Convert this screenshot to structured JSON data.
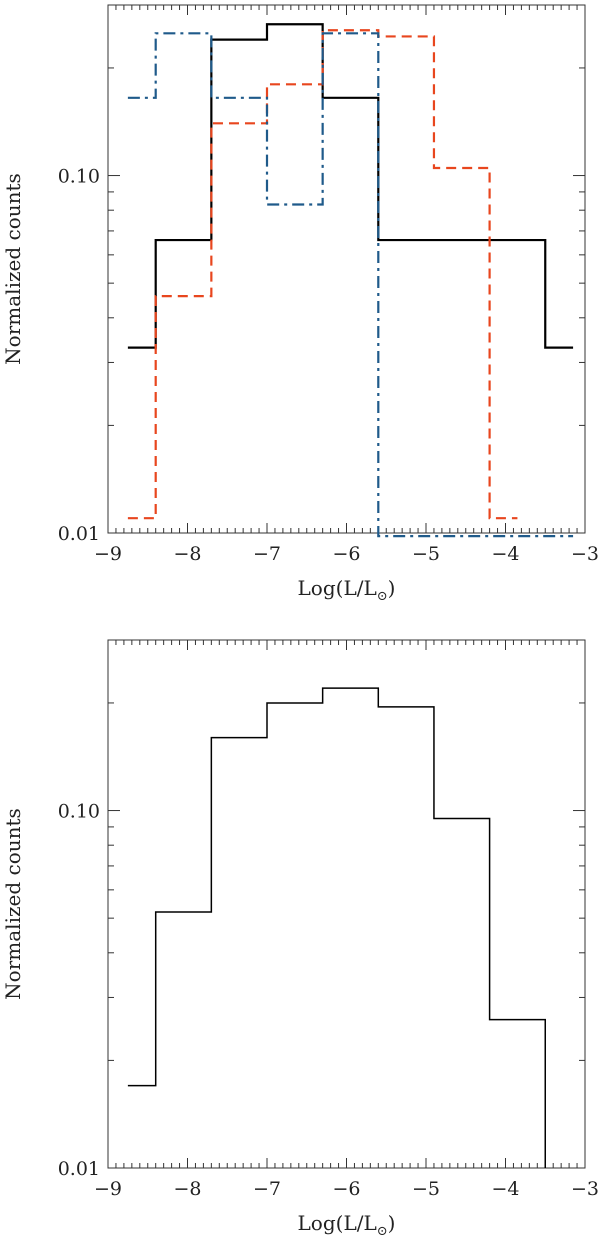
{
  "chart_data": [
    {
      "type": "line",
      "subtype": "step-histogram",
      "ylog": true,
      "xlim": [
        -9,
        -3
      ],
      "ylim": [
        0.01,
        0.3
      ],
      "xlabel": "Log(L/L",
      "xlabel_sub": "⊙",
      "xlabel_close": ")",
      "ylabel": "Normalized counts",
      "yticks": [
        {
          "value": 0.01,
          "label": "0.01"
        },
        {
          "value": 0.1,
          "label": "0.10"
        }
      ],
      "xticks": [
        {
          "value": -9,
          "label": "−9"
        },
        {
          "value": -8,
          "label": "−8"
        },
        {
          "value": -7,
          "label": "−7"
        },
        {
          "value": -6,
          "label": "−6"
        },
        {
          "value": -5,
          "label": "−5"
        },
        {
          "value": -4,
          "label": "−4"
        },
        {
          "value": -3,
          "label": "−3"
        }
      ],
      "series": [
        {
          "style": "solid",
          "color": "#000000",
          "edges": [
            -8.75,
            -8.4,
            -7.7,
            -7.0,
            -6.3,
            -5.6,
            -4.9,
            -4.2,
            -3.5,
            -3.15
          ],
          "values": [
            0.033,
            0.066,
            0.24,
            0.265,
            0.165,
            0.066,
            0.066,
            0.066,
            0.033
          ]
        },
        {
          "style": "dashed",
          "color": "#e8461e",
          "edges": [
            -8.75,
            -8.4,
            -7.7,
            -7.0,
            -6.3,
            -5.6,
            -4.9,
            -4.2,
            -3.85
          ],
          "values": [
            0.011,
            0.046,
            0.14,
            0.18,
            0.255,
            0.245,
            0.105,
            0.011
          ]
        },
        {
          "style": "dashdot",
          "color": "#1f5a8a",
          "edges": [
            -8.75,
            -8.4,
            -7.7,
            -7.0,
            -6.3,
            -5.6,
            -3.15
          ],
          "values": [
            0.165,
            0.25,
            0.165,
            0.083,
            0.25,
            0.0098
          ]
        }
      ]
    },
    {
      "type": "line",
      "subtype": "step-histogram",
      "ylog": true,
      "xlim": [
        -9,
        -3
      ],
      "ylim": [
        0.01,
        0.3
      ],
      "xlabel": "Log(L/L",
      "xlabel_sub": "⊙",
      "xlabel_close": ")",
      "ylabel": "Normalized counts",
      "yticks": [
        {
          "value": 0.01,
          "label": "0.01"
        },
        {
          "value": 0.1,
          "label": "0.10"
        }
      ],
      "xticks": [
        {
          "value": -9,
          "label": "−9"
        },
        {
          "value": -8,
          "label": "−8"
        },
        {
          "value": -7,
          "label": "−7"
        },
        {
          "value": -6,
          "label": "−6"
        },
        {
          "value": -5,
          "label": "−5"
        },
        {
          "value": -4,
          "label": "−4"
        },
        {
          "value": -3,
          "label": "−3"
        }
      ],
      "series": [
        {
          "style": "solid",
          "color": "#000000",
          "edges": [
            -8.75,
            -8.4,
            -7.7,
            -7.0,
            -6.3,
            -5.6,
            -4.9,
            -4.2,
            -3.5
          ],
          "values": [
            0.017,
            0.052,
            0.16,
            0.2,
            0.22,
            0.195,
            0.095,
            0.026
          ],
          "drop_to_axis_end": true
        }
      ]
    }
  ]
}
